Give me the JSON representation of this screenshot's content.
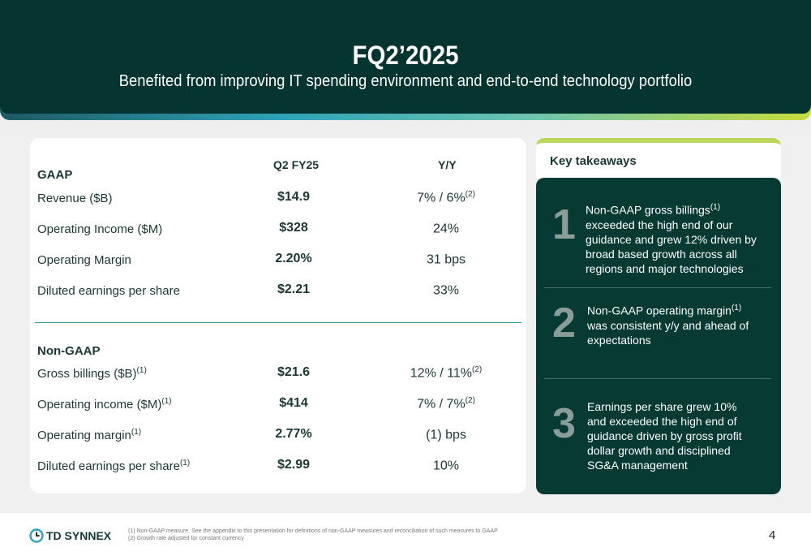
{
  "header": {
    "title": "FQ2’2025",
    "subtitle": "Benefited from improving IT spending environment and end-to-end technology portfolio"
  },
  "table": {
    "col_q2": "Q2 FY25",
    "col_yy": "Y/Y",
    "gaap_label": "GAAP",
    "gaap_rows": [
      {
        "label": "Revenue ($B)",
        "sup": "",
        "value": "$14.9",
        "yy": "7% / 6%",
        "yy_sup": "(2)"
      },
      {
        "label": "Operating Income ($M)",
        "sup": "",
        "value": "$328",
        "yy": "24%",
        "yy_sup": ""
      },
      {
        "label": "Operating Margin",
        "sup": "",
        "value": "2.20%",
        "yy": "31 bps",
        "yy_sup": ""
      },
      {
        "label": "Diluted earnings per share",
        "sup": "",
        "value": "$2.21",
        "yy": "33%",
        "yy_sup": ""
      }
    ],
    "nongaap_label": "Non-GAAP",
    "nongaap_rows": [
      {
        "label": "Gross billings ($B)",
        "sup": "(1)",
        "value": "$21.6",
        "yy": "12% / 11%",
        "yy_sup": "(2)"
      },
      {
        "label": "Operating income ($M)",
        "sup": "(1)",
        "value": "$414",
        "yy": "7% / 7%",
        "yy_sup": "(2)"
      },
      {
        "label": "Operating margin",
        "sup": "(1)",
        "value": "2.77%",
        "yy": "(1) bps",
        "yy_sup": ""
      },
      {
        "label": "Diluted earnings per share",
        "sup": "(1)",
        "value": "$2.99",
        "yy": "10%",
        "yy_sup": ""
      }
    ]
  },
  "takeaways": {
    "title": "Key takeaways",
    "items": [
      {
        "num": "1",
        "pre": "Non-GAAP gross billings",
        "sup": "(1)",
        "post": " exceeded the high end of our guidance and grew 12% driven by broad based growth across all regions and major technologies"
      },
      {
        "num": "2",
        "pre": "Non-GAAP operating margin",
        "sup": "(1)",
        "post": " was consistent y/y and ahead of expectations"
      },
      {
        "num": "3",
        "pre": "Earnings per share grew 10% and exceeded the high end of guidance driven by gross profit dollar growth and disciplined SG&A management",
        "sup": "",
        "post": ""
      }
    ]
  },
  "footer": {
    "logo": "TD SYNNEX",
    "footnote1": "(1)  Non-GAAP measure. See the appendix to this presentation for definitions of non-GAAP measures and reconciliation of such measures to GAAP",
    "footnote2": "(2)  Growth rate adjusted for constant currency",
    "page": "4"
  },
  "colors": {
    "header_bg": "#063430",
    "panel_bg": "#073a33",
    "accent_teal": "#2e9a9a",
    "accent_lime": "#b9d85a"
  }
}
